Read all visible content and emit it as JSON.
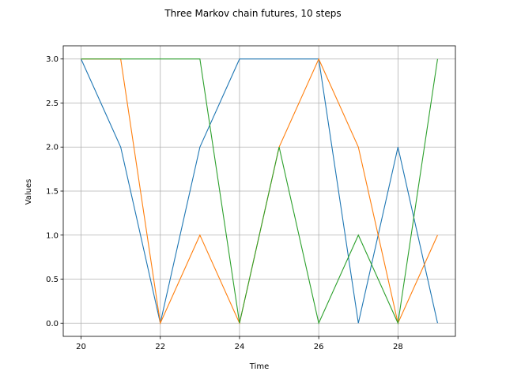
{
  "chart_data": {
    "type": "line",
    "title": "Three Markov chain futures, 10 steps",
    "xlabel": "Time",
    "ylabel": "Values",
    "x": [
      20,
      21,
      22,
      23,
      24,
      25,
      26,
      27,
      28,
      29
    ],
    "xlim": [
      19.55,
      29.45
    ],
    "ylim": [
      -0.15,
      3.15
    ],
    "xticks": [
      20,
      22,
      24,
      26,
      28
    ],
    "yticks": [
      0,
      0.5,
      1,
      1.5,
      2,
      2.5,
      3
    ],
    "ytick_labels": [
      "0.0",
      "0.5",
      "1.0",
      "1.5",
      "2.0",
      "2.5",
      "3.0"
    ],
    "grid": true,
    "series": [
      {
        "values": [
          3,
          2,
          0,
          2,
          3,
          3,
          3,
          0,
          2,
          0
        ],
        "color": "#1f77b4"
      },
      {
        "values": [
          3,
          3,
          0,
          1,
          0,
          2,
          3,
          2,
          0,
          1
        ],
        "color": "#ff7f0e"
      },
      {
        "values": [
          3,
          3,
          3,
          3,
          0,
          2,
          0,
          1,
          0,
          3
        ],
        "color": "#2ca02c"
      }
    ]
  }
}
